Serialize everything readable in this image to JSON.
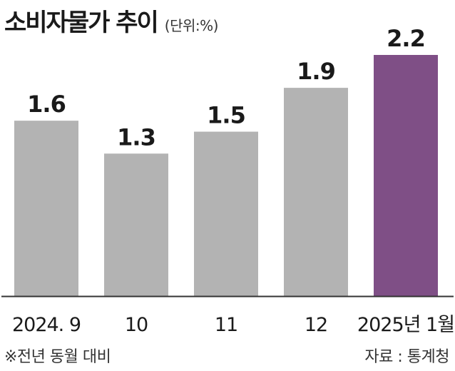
{
  "header": {
    "title": "소비자물가 추이",
    "unit": "(단위:%)"
  },
  "chart_data": {
    "type": "bar",
    "categories": [
      "2024. 9",
      "10",
      "11",
      "12",
      "2025년 1월"
    ],
    "values": [
      1.6,
      1.3,
      1.5,
      1.9,
      2.2
    ],
    "value_labels": [
      "1.6",
      "1.3",
      "1.5",
      "1.9",
      "2.2"
    ],
    "title": "소비자물가 추이",
    "unit": "(단위:%)",
    "xlabel": "",
    "ylabel": "",
    "ylim": [
      0,
      2.2
    ],
    "grid": false,
    "colors": {
      "default": "#b3b3b3",
      "highlight": "#7f4f86",
      "axis": "#333333"
    },
    "highlight_index": 4
  },
  "footer": {
    "note": "※전년 동월 대비",
    "source": "자료 : 통계청"
  }
}
